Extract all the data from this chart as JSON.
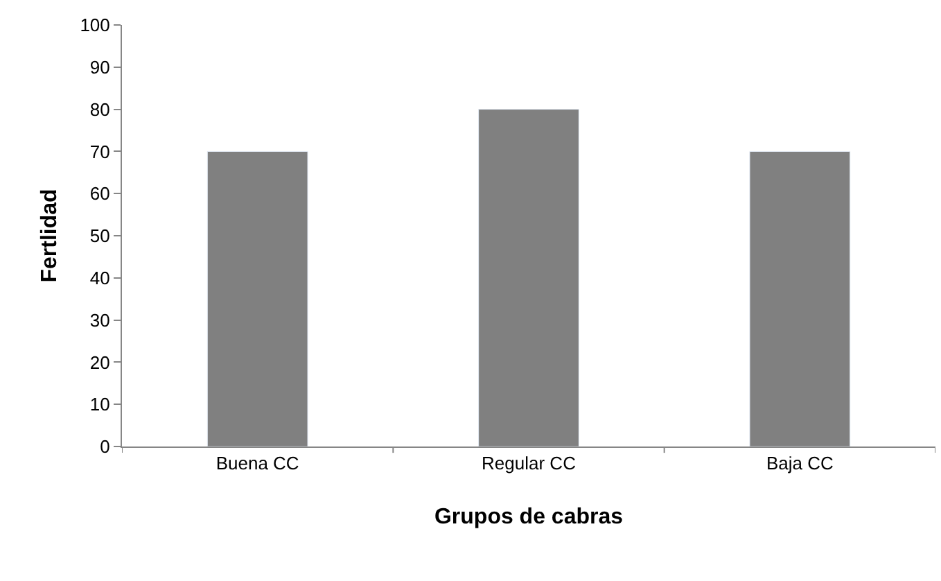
{
  "chart_data": {
    "type": "bar",
    "xlabel": "Grupos de cabras",
    "ylabel": "Fertlidad",
    "categories": [
      "Buena CC",
      "Regular CC",
      "Baja CC"
    ],
    "values": [
      70,
      80,
      70
    ],
    "color": "#808080",
    "ylim": [
      0,
      100
    ],
    "yticks": [
      0,
      10,
      20,
      30,
      40,
      50,
      60,
      70,
      80,
      90,
      100
    ]
  }
}
